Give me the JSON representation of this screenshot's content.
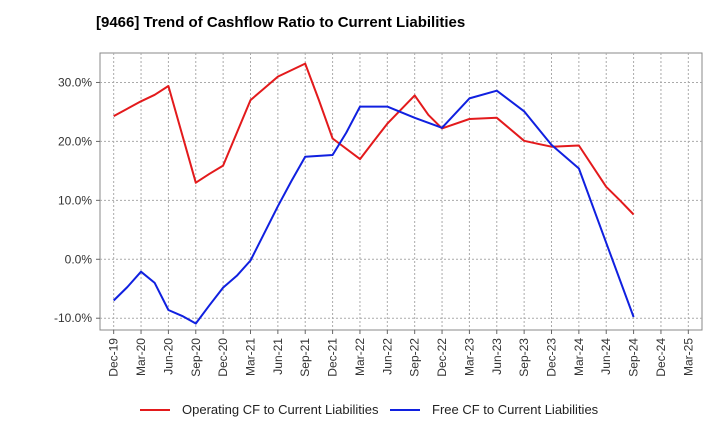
{
  "chart_data": {
    "type": "line",
    "title": "[9466]  Trend of Cashflow Ratio to Current Liabilities",
    "xlabel": "",
    "ylabel": "",
    "ylim": [
      -12,
      35
    ],
    "yticks": [
      "30.0%",
      "20.0%",
      "10.0%",
      "0.0%",
      "-10.0%"
    ],
    "ytick_values": [
      30,
      20,
      10,
      0,
      -10
    ],
    "x": [
      "Dec-19",
      "Mar-20",
      "Jun-20",
      "Sep-20",
      "Dec-20",
      "Mar-21",
      "Jun-21",
      "Sep-21",
      "Dec-21",
      "Mar-22",
      "Jun-22",
      "Sep-22",
      "Dec-22",
      "Mar-23",
      "Jun-23",
      "Sep-23",
      "Dec-23",
      "Mar-24",
      "Jun-24",
      "Sep-24",
      "Dec-24",
      "Mar-25"
    ],
    "grid": true,
    "legend_position": "bottom",
    "series": [
      {
        "name": "Operating CF to Current Liabilities",
        "color": "#e31a1c",
        "values": [
          24.3,
          26.8,
          29.4,
          13.0,
          15.9,
          27.0,
          31.0,
          33.2,
          20.5,
          17.0,
          23.0,
          27.8,
          22.2,
          23.8,
          24.0,
          20.1,
          19.1,
          19.3,
          12.3,
          7.6,
          null,
          null
        ],
        "extra_points": [
          {
            "x_index": 1.5,
            "y": 27.9
          },
          {
            "x_index": 3.5,
            "y": 14.5
          },
          {
            "x_index": 5.5,
            "y": 29.0
          },
          {
            "x_index": 7.5,
            "y": 27.0
          },
          {
            "x_index": 9.5,
            "y": 20.0
          },
          {
            "x_index": 11.5,
            "y": 24.5
          },
          {
            "x_index": 13.5,
            "y": 23.9
          },
          {
            "x_index": 15.5,
            "y": 19.6
          },
          {
            "x_index": 18.5,
            "y": 10.0
          }
        ]
      },
      {
        "name": "Free CF to Current Liabilities",
        "color": "#1020e0",
        "values": [
          -7.0,
          -2.1,
          -8.6,
          -10.9,
          -4.8,
          -0.2,
          9.0,
          17.4,
          17.7,
          25.9,
          25.9,
          24.0,
          22.3,
          27.3,
          28.6,
          25.1,
          19.4,
          15.4,
          2.8,
          -9.8,
          null,
          null
        ],
        "extra_points": [
          {
            "x_index": 0.5,
            "y": -4.7
          },
          {
            "x_index": 1.5,
            "y": -4.0
          },
          {
            "x_index": 2.5,
            "y": -9.6
          },
          {
            "x_index": 3.5,
            "y": -7.8
          },
          {
            "x_index": 4.5,
            "y": -2.8
          },
          {
            "x_index": 6.5,
            "y": 13.3
          },
          {
            "x_index": 8.5,
            "y": 21.5
          }
        ]
      }
    ]
  }
}
